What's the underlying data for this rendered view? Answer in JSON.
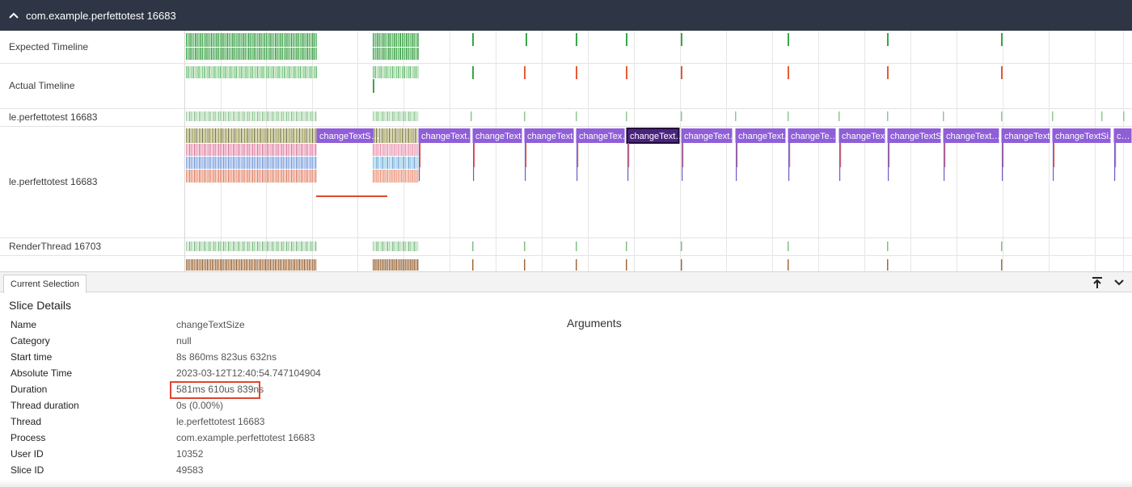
{
  "process_header": {
    "title": "com.example.perfettotest 16683",
    "collapse_icon": "chevron-up-icon"
  },
  "tracks": [
    {
      "label": "Expected Timeline"
    },
    {
      "label": "Actual Timeline"
    },
    {
      "label": "le.perfettotest 16683"
    },
    {
      "label": "le.perfettotest 16683"
    },
    {
      "label": "RenderThread 16703"
    }
  ],
  "slices": [
    {
      "label": "changeTextS…"
    },
    {
      "label": "changeText…"
    },
    {
      "label": "changeText…"
    },
    {
      "label": "changeText…"
    },
    {
      "label": "changeTex…"
    },
    {
      "label": "changeText…",
      "selected": true
    },
    {
      "label": "changeText…"
    },
    {
      "label": "changeText…"
    },
    {
      "label": "changeTe…"
    },
    {
      "label": "changeText…"
    },
    {
      "label": "changeTextSi…"
    },
    {
      "label": "changeText…"
    },
    {
      "label": "changeText…"
    },
    {
      "label": "changeTextSi…"
    },
    {
      "label": "c…"
    }
  ],
  "colors": {
    "header_bg": "#2e3645",
    "slice_purple": "#8f5ed8",
    "slice_selected": "#4a237c",
    "expected_green": "#3aa648",
    "actual_red": "#e65a35",
    "highlight_red": "#e0462f"
  },
  "panel": {
    "tab_label": "Current Selection",
    "maximize_icon": "pin-to-top-icon",
    "collapse_icon": "chevron-down-icon"
  },
  "details": {
    "title": "Slice Details",
    "arguments_title": "Arguments",
    "rows": [
      {
        "key": "Name",
        "value": "changeTextSize"
      },
      {
        "key": "Category",
        "value": "null"
      },
      {
        "key": "Start time",
        "value": "8s 860ms 823us 632ns"
      },
      {
        "key": "Absolute Time",
        "value": "2023-03-12T12:40:54.747104904"
      },
      {
        "key": "Duration",
        "value": "581ms 610us 839ns"
      },
      {
        "key": "Thread duration",
        "value": "0s (0.00%)"
      },
      {
        "key": "Thread",
        "value": "le.perfettotest 16683"
      },
      {
        "key": "Process",
        "value": "com.example.perfettotest 16683"
      },
      {
        "key": "User ID",
        "value": "10352"
      },
      {
        "key": "Slice ID",
        "value": "49583"
      }
    ]
  }
}
